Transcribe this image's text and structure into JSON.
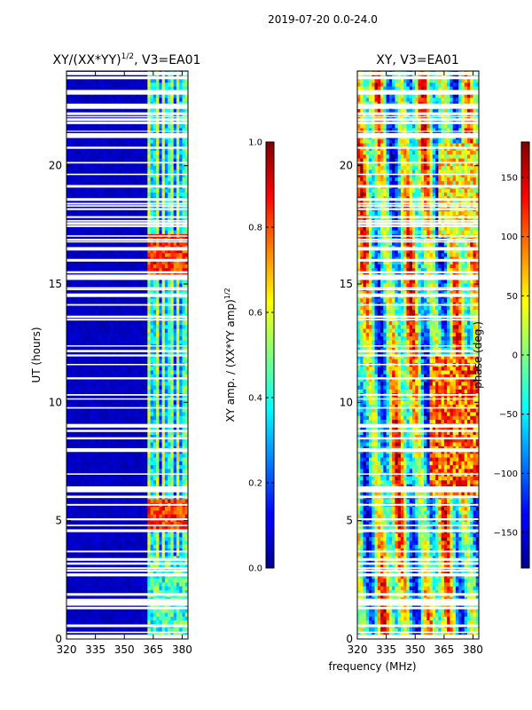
{
  "figure_title": "2019-07-20 0.0-24.0",
  "chart_data": [
    {
      "type": "heatmap",
      "title": "XY/(XX*YY)^{1/2}, V3=EA01",
      "title_main": "XY/(XX*YY)",
      "title_sup": "1/2",
      "title_tail": ", V3=EA01",
      "xlabel": "",
      "ylabel": "UT (hours)",
      "xlim": [
        320,
        383
      ],
      "ylim": [
        0,
        24
      ],
      "xticks": [
        320,
        335,
        350,
        365,
        380
      ],
      "yticks": [
        0,
        5,
        10,
        15,
        20
      ],
      "colormap": "jet",
      "colorbar": {
        "label": "XY amp. / (XX*YY amp)^{1/2}",
        "label_main": "XY amp. / (XX*YY amp)",
        "label_sup": "1/2",
        "range": [
          0.0,
          1.0
        ],
        "ticks": [
          "0.0",
          "0.2",
          "0.4",
          "0.6",
          "0.8",
          "1.0"
        ]
      },
      "description": "normalized amplitude mostly low (~0.05) below 362 MHz; bands near 362-383 MHz with values 0.3-0.9, highest (~0.8-0.9) around 15.5-17 h and 4.5-6 h"
    },
    {
      "type": "heatmap",
      "title": "XY, V3=EA01",
      "xlabel": "frequency (MHz)",
      "ylabel": "",
      "xlim": [
        320,
        383
      ],
      "ylim": [
        0,
        24
      ],
      "xticks": [
        320,
        335,
        350,
        365,
        380
      ],
      "yticks": [
        0,
        5,
        10,
        15,
        20
      ],
      "colormap": "jet",
      "colorbar": {
        "label": "phase (deg.)",
        "range": [
          -180,
          180
        ],
        "ticks": [
          "−150",
          "−100",
          "−50",
          "0",
          "50",
          "100",
          "150"
        ]
      },
      "description": "XY phase in degrees, wrapping vertical stripes across frequency"
    }
  ],
  "colors": {
    "jet_dark_blue": "#00008f",
    "jet_blue": "#0000ff",
    "jet_cyan": "#00ffff",
    "jet_yellow": "#ffff00",
    "jet_red": "#ff0000",
    "jet_dark_red": "#800000"
  }
}
